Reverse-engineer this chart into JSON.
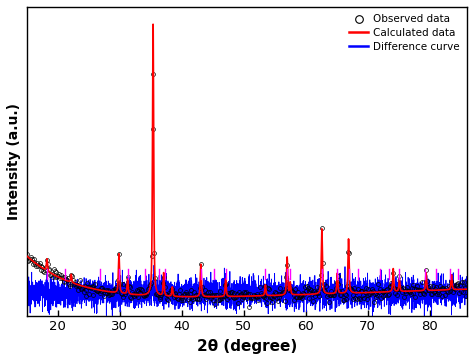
{
  "x_min": 15,
  "x_max": 86,
  "x_ticks": [
    20,
    30,
    40,
    50,
    60,
    70,
    80
  ],
  "xlabel": "2θ (degree)",
  "ylabel": "Intensity (a.u.)",
  "background_color": "#ffffff",
  "peak_positions": [
    18.3,
    22.2,
    29.9,
    31.3,
    35.4,
    37.1,
    38.5,
    43.1,
    47.1,
    53.5,
    57.0,
    57.5,
    62.6,
    65.1,
    66.9,
    74.1,
    75.1,
    79.4,
    83.5
  ],
  "peak_heights": [
    0.045,
    0.03,
    0.145,
    0.055,
    1.0,
    0.085,
    0.035,
    0.12,
    0.065,
    0.04,
    0.14,
    0.045,
    0.24,
    0.075,
    0.2,
    0.085,
    0.045,
    0.065,
    0.055
  ],
  "peak_widths": [
    0.22,
    0.2,
    0.22,
    0.2,
    0.22,
    0.2,
    0.2,
    0.22,
    0.2,
    0.2,
    0.22,
    0.2,
    0.22,
    0.2,
    0.22,
    0.2,
    0.2,
    0.2,
    0.2
  ],
  "bragg_positions": [
    18.3,
    21.2,
    26.8,
    29.9,
    31.3,
    34.1,
    36.3,
    37.3,
    43.1,
    45.2,
    47.1,
    53.4,
    57.0,
    57.5,
    62.6,
    65.1,
    66.9,
    68.5,
    72.0,
    73.5,
    75.1,
    79.3,
    81.0,
    83.2,
    84.5
  ],
  "diff_baseline": 0.07,
  "diff_amplitude": 0.025,
  "obs_color": "#000000",
  "calc_color": "#ff0000",
  "diff_color": "#0000ff",
  "bragg_color": "#ff00ff",
  "legend_labels": [
    "Observed data",
    "Calculated data",
    "Difference curve"
  ],
  "figsize": [
    4.74,
    3.61
  ],
  "dpi": 100
}
